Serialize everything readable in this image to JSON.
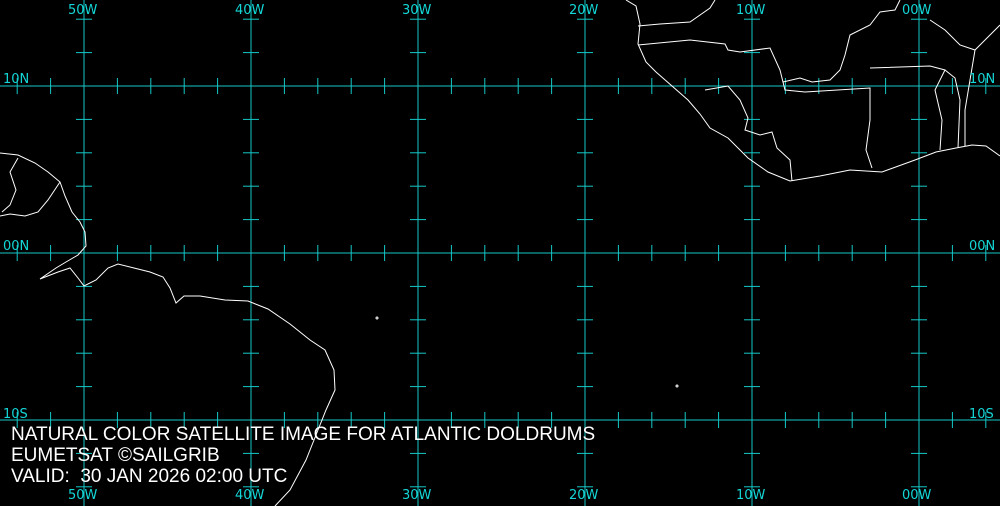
{
  "map": {
    "colors": {
      "background": "#000000",
      "grid": "#14c8c8",
      "coast": "#ffffff",
      "label": "#14d6d6",
      "caption": "#ffffff"
    },
    "longitude_labels": [
      "50W",
      "40W",
      "30W",
      "20W",
      "10W",
      "00W"
    ],
    "latitude_labels": [
      "10N",
      "00N",
      "10S"
    ],
    "caption": {
      "title": "NATURAL COLOR SATELLITE IMAGE FOR ATLANTIC DOLDRUMS",
      "credit": "EUMETSAT ©SAILGRIB",
      "valid": "VALID:  30 JAN 2026 02:00 UTC"
    }
  }
}
